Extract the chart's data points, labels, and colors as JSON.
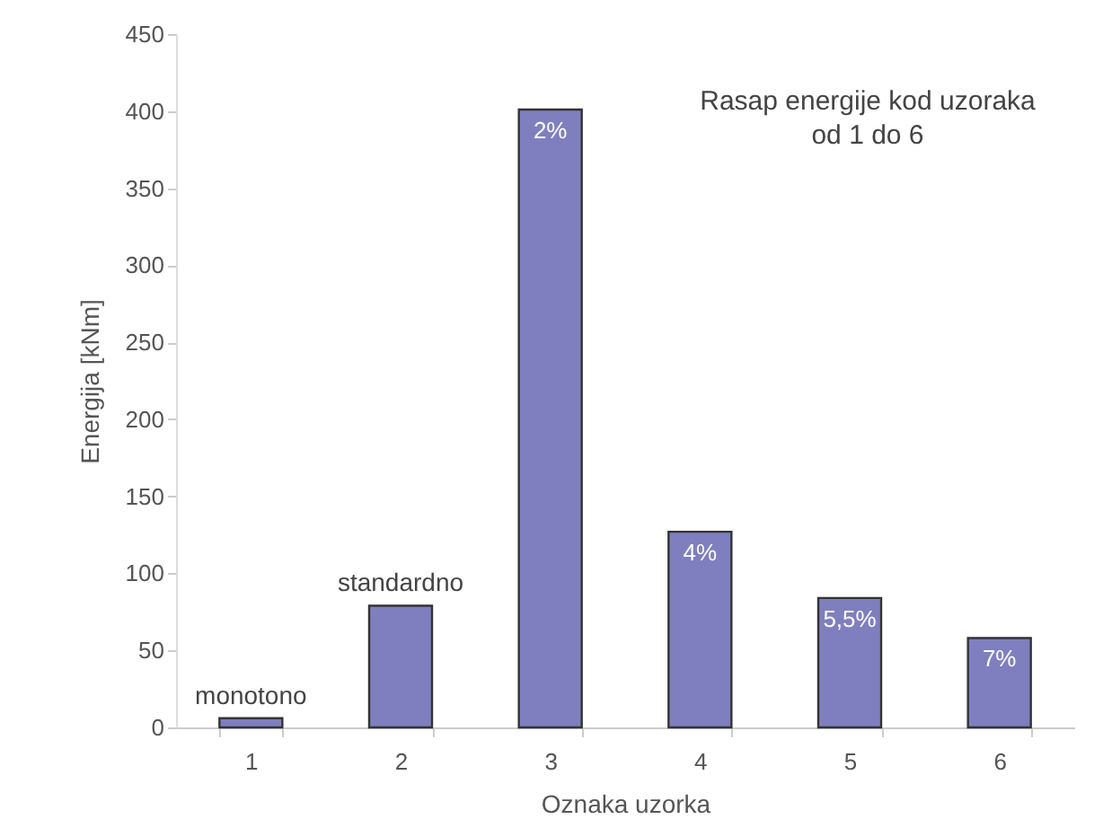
{
  "chart_data": {
    "type": "bar",
    "xlabel": "Oznaka uzorka",
    "ylabel": "Energija [kNm]",
    "categories": [
      "1",
      "2",
      "3",
      "4",
      "5",
      "6"
    ],
    "values": [
      6,
      79,
      401,
      127,
      84,
      58
    ],
    "color": "#7f7fbf",
    "ylim": [
      0,
      450
    ],
    "yticks": [
      0,
      50,
      100,
      150,
      200,
      250,
      300,
      350,
      400,
      450
    ],
    "grid": false,
    "annotations": [
      {
        "text": "monotono",
        "x": "1",
        "y": 6
      },
      {
        "text": "standardno",
        "x": "2",
        "y": 79
      },
      {
        "text": "2%",
        "x": "3",
        "y": 401
      },
      {
        "text": "4%",
        "x": "4",
        "y": 127
      },
      {
        "text": "5,5%",
        "x": "5",
        "y": 84
      },
      {
        "text": "7%",
        "x": "6",
        "y": 58
      },
      "Rasap energije kod uzoraka od 1 do 6"
    ]
  }
}
